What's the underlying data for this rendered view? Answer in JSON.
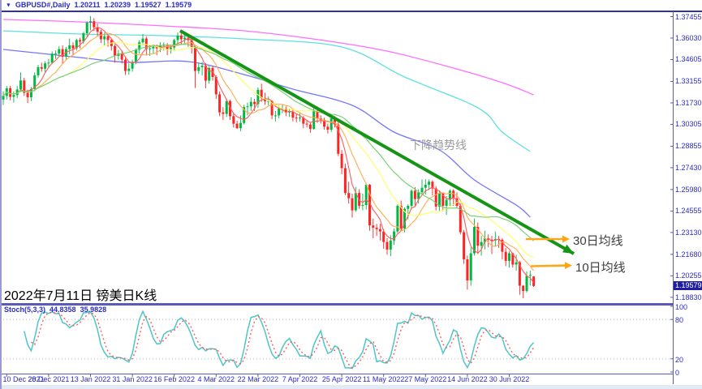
{
  "header": {
    "collapse_icon": "▼",
    "symbol": "GBPUSD#,Daily",
    "open": "1.20211",
    "high": "1.20239",
    "low": "1.19527",
    "close": "1.19579"
  },
  "annotations": {
    "trendline": "下降趋势线",
    "ma30": "30日均线",
    "ma10": "10日均线",
    "caption": "2022年7月11日 镑美日K线"
  },
  "stoch": {
    "label": "Stoch(5,3,3)",
    "k": "44.8358",
    "d": "35.9828"
  },
  "price_badge": "1.19579",
  "colors": {
    "up": "#00b840",
    "down": "#ff2424",
    "ma5": "#ff5a5a",
    "ma10": "#ffab4f",
    "ma20": "#ffff5e",
    "ma30": "#6ed06e",
    "ma60": "#7575ff",
    "ma100": "#5ee0e0",
    "ma200": "#ff6eff",
    "trendline": "#169416",
    "arrow": "#ffa617",
    "stoch_k": "#4cc7c7",
    "stoch_d": "#ff5a5a",
    "level_line": "#bcbcbc",
    "axis_text": "#2a2ac8"
  },
  "chart_data": {
    "type": "candlestick",
    "symbol": "GBPUSD#",
    "timeframe": "Daily",
    "price_axis_labels": [
      "1.37455",
      "1.36030",
      "1.34605",
      "1.33155",
      "1.31730",
      "1.30305",
      "1.28855",
      "1.27430",
      "1.25980",
      "1.24555",
      "1.23130",
      "1.21680",
      "1.20255",
      "1.18830"
    ],
    "date_labels": [
      "10 Dec 2021",
      "28 Dec 2021",
      "13 Jan 2022",
      "31 Jan 2022",
      "16 Feb 2022",
      "4 Mar 2022",
      "22 Mar 2022",
      "7 Apr 2022",
      "25 Apr 2022",
      "11 May 2022",
      "27 May 2022",
      "14 Jun 2022",
      "30 Jun 2022"
    ],
    "date_label_start_index": 1,
    "date_label_step": 12,
    "stoch_axis_labels": [
      "100",
      "80",
      "20",
      "0"
    ],
    "stoch_axis_values": [
      100,
      80,
      20,
      0
    ],
    "stoch_level_lines": [
      80,
      20
    ],
    "stoch_params": {
      "k_period": 5,
      "slowing": 3,
      "d_period": 3
    },
    "last_close": 1.19579,
    "candles": [
      [
        1.3195,
        1.325,
        1.316,
        1.322
      ],
      [
        1.322,
        1.3285,
        1.3195,
        1.327
      ],
      [
        1.327,
        1.3286,
        1.319,
        1.3213
      ],
      [
        1.3213,
        1.325,
        1.3175,
        1.3225
      ],
      [
        1.3225,
        1.3285,
        1.3205,
        1.3262
      ],
      [
        1.3262,
        1.3375,
        1.3245,
        1.3322
      ],
      [
        1.3322,
        1.334,
        1.322,
        1.324
      ],
      [
        1.324,
        1.326,
        1.3172,
        1.321
      ],
      [
        1.321,
        1.3278,
        1.3185,
        1.3265
      ],
      [
        1.3265,
        1.3375,
        1.325,
        1.3356
      ],
      [
        1.3356,
        1.3425,
        1.334,
        1.341
      ],
      [
        1.341,
        1.344,
        1.338,
        1.34
      ],
      [
        1.34,
        1.345,
        1.337,
        1.3435
      ],
      [
        1.3435,
        1.3465,
        1.3405,
        1.344
      ],
      [
        1.344,
        1.3515,
        1.343,
        1.35
      ],
      [
        1.35,
        1.352,
        1.3465,
        1.35
      ],
      [
        1.35,
        1.355,
        1.3485,
        1.353
      ],
      [
        1.353,
        1.3555,
        1.3435,
        1.348
      ],
      [
        1.348,
        1.3545,
        1.346,
        1.353
      ],
      [
        1.353,
        1.36,
        1.3495,
        1.3555
      ],
      [
        1.3555,
        1.3575,
        1.349,
        1.3535
      ],
      [
        1.3535,
        1.36,
        1.352,
        1.359
      ],
      [
        1.359,
        1.3605,
        1.3535,
        1.358
      ],
      [
        1.358,
        1.3645,
        1.3565,
        1.3635
      ],
      [
        1.3635,
        1.3715,
        1.361,
        1.3705
      ],
      [
        1.3705,
        1.3749,
        1.3655,
        1.3715
      ],
      [
        1.3715,
        1.3735,
        1.365,
        1.3675
      ],
      [
        1.3675,
        1.37,
        1.3615,
        1.3645
      ],
      [
        1.3645,
        1.366,
        1.357,
        1.3595
      ],
      [
        1.3595,
        1.364,
        1.3555,
        1.3615
      ],
      [
        1.3615,
        1.3625,
        1.3545,
        1.359
      ],
      [
        1.359,
        1.36,
        1.352,
        1.355
      ],
      [
        1.355,
        1.356,
        1.344,
        1.3485
      ],
      [
        1.3485,
        1.3525,
        1.346,
        1.35
      ],
      [
        1.35,
        1.352,
        1.3435,
        1.346
      ],
      [
        1.346,
        1.3475,
        1.3358,
        1.3385
      ],
      [
        1.3385,
        1.3435,
        1.336,
        1.34
      ],
      [
        1.34,
        1.346,
        1.338,
        1.3445
      ],
      [
        1.3445,
        1.3535,
        1.343,
        1.3525
      ],
      [
        1.3525,
        1.359,
        1.35,
        1.3575
      ],
      [
        1.3575,
        1.363,
        1.3555,
        1.36
      ],
      [
        1.36,
        1.3615,
        1.349,
        1.353
      ],
      [
        1.353,
        1.355,
        1.3485,
        1.3535
      ],
      [
        1.3535,
        1.356,
        1.35,
        1.3545
      ],
      [
        1.3545,
        1.356,
        1.349,
        1.3535
      ],
      [
        1.3535,
        1.3575,
        1.351,
        1.3555
      ],
      [
        1.3555,
        1.3575,
        1.352,
        1.356
      ],
      [
        1.356,
        1.357,
        1.349,
        1.353
      ],
      [
        1.353,
        1.356,
        1.35,
        1.354
      ],
      [
        1.354,
        1.36,
        1.352,
        1.359
      ],
      [
        1.359,
        1.364,
        1.357,
        1.362
      ],
      [
        1.362,
        1.3635,
        1.356,
        1.3595
      ],
      [
        1.3595,
        1.3625,
        1.3565,
        1.3605
      ],
      [
        1.3605,
        1.362,
        1.3545,
        1.359
      ],
      [
        1.359,
        1.36,
        1.35,
        1.3545
      ],
      [
        1.3545,
        1.355,
        1.3272,
        1.3385
      ],
      [
        1.3385,
        1.344,
        1.3365,
        1.341
      ],
      [
        1.341,
        1.3445,
        1.3355,
        1.342
      ],
      [
        1.342,
        1.3438,
        1.327,
        1.332
      ],
      [
        1.332,
        1.3418,
        1.33,
        1.3405
      ],
      [
        1.3405,
        1.342,
        1.332,
        1.3345
      ],
      [
        1.3345,
        1.3355,
        1.32,
        1.323
      ],
      [
        1.323,
        1.325,
        1.3085,
        1.311
      ],
      [
        1.311,
        1.3145,
        1.306,
        1.31
      ],
      [
        1.31,
        1.32,
        1.308,
        1.3185
      ],
      [
        1.3185,
        1.3195,
        1.306,
        1.3085
      ],
      [
        1.3085,
        1.3105,
        1.301,
        1.3035
      ],
      [
        1.3035,
        1.3055,
        1.3,
        1.3005
      ],
      [
        1.3005,
        1.309,
        1.2985,
        1.304
      ],
      [
        1.304,
        1.316,
        1.303,
        1.3145
      ],
      [
        1.3145,
        1.3175,
        1.309,
        1.315
      ],
      [
        1.315,
        1.321,
        1.312,
        1.318
      ],
      [
        1.318,
        1.32,
        1.312,
        1.3165
      ],
      [
        1.3165,
        1.3275,
        1.314,
        1.326
      ],
      [
        1.326,
        1.33,
        1.318,
        1.3205
      ],
      [
        1.3205,
        1.324,
        1.316,
        1.3185
      ],
      [
        1.3185,
        1.3215,
        1.3155,
        1.3185
      ],
      [
        1.3185,
        1.319,
        1.3065,
        1.309
      ],
      [
        1.309,
        1.312,
        1.305,
        1.309
      ],
      [
        1.309,
        1.3155,
        1.307,
        1.3135
      ],
      [
        1.3135,
        1.316,
        1.3105,
        1.3135
      ],
      [
        1.3135,
        1.315,
        1.3085,
        1.311
      ],
      [
        1.311,
        1.3135,
        1.308,
        1.3115
      ],
      [
        1.3115,
        1.313,
        1.305,
        1.3075
      ],
      [
        1.3075,
        1.31,
        1.3045,
        1.307
      ],
      [
        1.307,
        1.3105,
        1.305,
        1.3075
      ],
      [
        1.3075,
        1.3085,
        1.3005,
        1.3035
      ],
      [
        1.3035,
        1.306,
        1.301,
        1.303
      ],
      [
        1.303,
        1.3045,
        1.2975,
        1.3
      ],
      [
        1.3,
        1.3145,
        1.2995,
        1.312
      ],
      [
        1.312,
        1.315,
        1.304,
        1.307
      ],
      [
        1.307,
        1.309,
        1.3035,
        1.306
      ],
      [
        1.306,
        1.3075,
        1.2995,
        1.3015
      ],
      [
        1.3015,
        1.3035,
        1.297,
        1.2995
      ],
      [
        1.2995,
        1.309,
        1.298,
        1.307
      ],
      [
        1.307,
        1.3085,
        1.301,
        1.303
      ],
      [
        1.303,
        1.3045,
        1.282,
        1.2835
      ],
      [
        1.2835,
        1.286,
        1.27,
        1.274
      ],
      [
        1.274,
        1.277,
        1.256,
        1.2575
      ],
      [
        1.2575,
        1.265,
        1.2505,
        1.254
      ],
      [
        1.254,
        1.257,
        1.2412,
        1.246
      ],
      [
        1.246,
        1.2615,
        1.245,
        1.2575
      ],
      [
        1.2575,
        1.26,
        1.247,
        1.249
      ],
      [
        1.249,
        1.257,
        1.246,
        1.2495
      ],
      [
        1.2495,
        1.264,
        1.2465,
        1.263
      ],
      [
        1.263,
        1.2635,
        1.2325,
        1.236
      ],
      [
        1.236,
        1.2405,
        1.2275,
        1.2345
      ],
      [
        1.2345,
        1.237,
        1.229,
        1.2335
      ],
      [
        1.2335,
        1.237,
        1.226,
        1.232
      ],
      [
        1.232,
        1.2335,
        1.2205,
        1.225
      ],
      [
        1.225,
        1.2275,
        1.2165,
        1.22
      ],
      [
        1.22,
        1.2295,
        1.2156,
        1.226
      ],
      [
        1.226,
        1.234,
        1.223,
        1.232
      ],
      [
        1.232,
        1.25,
        1.231,
        1.249
      ],
      [
        1.249,
        1.2525,
        1.233,
        1.234
      ],
      [
        1.234,
        1.248,
        1.2315,
        1.247
      ],
      [
        1.247,
        1.25,
        1.24,
        1.249
      ],
      [
        1.249,
        1.26,
        1.247,
        1.259
      ],
      [
        1.259,
        1.2615,
        1.249,
        1.2535
      ],
      [
        1.2535,
        1.26,
        1.2505,
        1.258
      ],
      [
        1.258,
        1.2665,
        1.256,
        1.261
      ],
      [
        1.261,
        1.2667,
        1.2565,
        1.263
      ],
      [
        1.263,
        1.2665,
        1.2595,
        1.265
      ],
      [
        1.265,
        1.266,
        1.256,
        1.2605
      ],
      [
        1.2605,
        1.262,
        1.246,
        1.2485
      ],
      [
        1.2485,
        1.259,
        1.2455,
        1.2575
      ],
      [
        1.2575,
        1.258,
        1.2455,
        1.249
      ],
      [
        1.249,
        1.2555,
        1.243,
        1.253
      ],
      [
        1.253,
        1.26,
        1.249,
        1.259
      ],
      [
        1.259,
        1.26,
        1.249,
        1.254
      ],
      [
        1.254,
        1.258,
        1.2475,
        1.249
      ],
      [
        1.249,
        1.2505,
        1.23,
        1.2315
      ],
      [
        1.2315,
        1.233,
        1.2105,
        1.2135
      ],
      [
        1.2135,
        1.216,
        1.1934,
        1.1995
      ],
      [
        1.1995,
        1.2215,
        1.196,
        1.2175
      ],
      [
        1.2175,
        1.2406,
        1.216,
        1.235
      ],
      [
        1.235,
        1.238,
        1.217,
        1.2225
      ],
      [
        1.2225,
        1.229,
        1.216,
        1.225
      ],
      [
        1.225,
        1.2325,
        1.22,
        1.2275
      ],
      [
        1.2275,
        1.23,
        1.2215,
        1.2265
      ],
      [
        1.2265,
        1.229,
        1.217,
        1.226
      ],
      [
        1.226,
        1.232,
        1.222,
        1.227
      ],
      [
        1.227,
        1.229,
        1.221,
        1.2265
      ],
      [
        1.2265,
        1.2275,
        1.2135,
        1.2185
      ],
      [
        1.2185,
        1.221,
        1.209,
        1.2125
      ],
      [
        1.2125,
        1.219,
        1.208,
        1.2175
      ],
      [
        1.2175,
        1.218,
        1.208,
        1.21
      ],
      [
        1.21,
        1.2165,
        1.206,
        1.2115
      ],
      [
        1.2115,
        1.2125,
        1.19,
        1.196
      ],
      [
        1.196,
        1.1965,
        1.1877,
        1.1925
      ],
      [
        1.1925,
        1.2055,
        1.1915,
        1.2025
      ],
      [
        1.2025,
        1.206,
        1.196,
        1.203
      ],
      [
        1.20211,
        1.20239,
        1.19527,
        1.19579
      ]
    ],
    "moving_averages": {
      "computed": [
        {
          "name": "MA5",
          "period": 5,
          "color_key": "ma5"
        },
        {
          "name": "MA10",
          "period": 10,
          "color_key": "ma10"
        },
        {
          "name": "MA20",
          "period": 20,
          "color_key": "ma20"
        },
        {
          "name": "MA30",
          "period": 30,
          "color_key": "ma30"
        }
      ],
      "polylines": [
        {
          "name": "MA60",
          "color_key": "ma60",
          "points": [
            [
              0,
              1.35277
            ],
            [
              22,
              1.34739
            ],
            [
              36,
              1.34416
            ],
            [
              53,
              1.3447
            ],
            [
              69,
              1.3361
            ],
            [
              83,
              1.32642
            ],
            [
              100,
              1.31566
            ],
            [
              112,
              1.29791
            ],
            [
              125,
              1.28609
            ],
            [
              135,
              1.26619
            ],
            [
              147,
              1.24952
            ],
            [
              151,
              1.24145
            ]
          ]
        },
        {
          "name": "MA100",
          "color_key": "ma100",
          "points": [
            [
              0,
              1.36514
            ],
            [
              22,
              1.36299
            ],
            [
              46,
              1.36191
            ],
            [
              69,
              1.35976
            ],
            [
              97,
              1.35438
            ],
            [
              115,
              1.33448
            ],
            [
              136,
              1.31405
            ],
            [
              143,
              1.29791
            ],
            [
              151,
              1.28501
            ]
          ]
        },
        {
          "name": "MA200",
          "color_key": "ma200",
          "points": [
            [
              0,
              1.37267
            ],
            [
              22,
              1.37106
            ],
            [
              46,
              1.36837
            ],
            [
              69,
              1.36514
            ],
            [
              92,
              1.35869
            ],
            [
              111,
              1.35116
            ],
            [
              129,
              1.3404
            ],
            [
              143,
              1.33072
            ],
            [
              152,
              1.32265
            ]
          ]
        }
      ]
    },
    "trendline": {
      "points": [
        [
          50.7,
          1.36514
        ],
        [
          163.5,
          1.21726
        ]
      ]
    },
    "stoch_last_values": {
      "k": 44.8358,
      "d": 35.9828
    }
  }
}
